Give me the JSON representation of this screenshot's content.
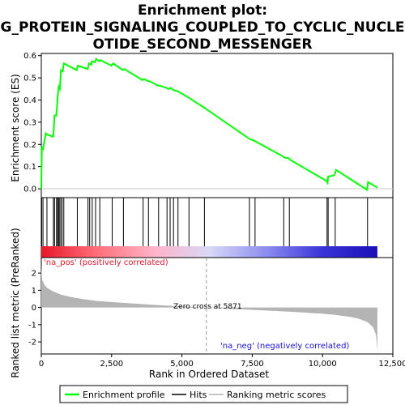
{
  "chart_data": {
    "type": "line",
    "title": "Enrichment plot: G_PROTEIN_SIGNALING_COUPLED_TO_CYCLIC_NUCLEOTIDE_SECOND_MESSENGER",
    "title_lines": [
      "Enrichment plot:",
      "G_PROTEIN_SIGNALING_COUPLED_TO_CYCLIC_NUCLE",
      "OTIDE_SECOND_MESSENGER"
    ],
    "xlabel": "Rank in Ordered Dataset",
    "xlim": [
      0,
      12500
    ],
    "x_ticks": [
      0,
      2500,
      5000,
      7500,
      10000,
      12500
    ],
    "x_tick_labels": [
      "0",
      "2,500",
      "5,000",
      "7,500",
      "10,000",
      "12,500"
    ],
    "es_panel": {
      "ylabel": "Enrichment score (ES)",
      "ylim": [
        -0.04,
        0.61
      ],
      "y_ticks": [
        0.0,
        0.1,
        0.2,
        0.3,
        0.4,
        0.5,
        0.6
      ],
      "y_tick_labels": [
        "0.0",
        "0.1",
        "0.2",
        "0.3",
        "0.4",
        "0.5",
        "0.6"
      ],
      "series": [
        {
          "name": "Enrichment profile",
          "color": "#00ff00",
          "x": [
            0,
            20,
            60,
            160,
            200,
            420,
            450,
            470,
            530,
            560,
            580,
            620,
            660,
            700,
            760,
            800,
            1260,
            1300,
            1650,
            1700,
            1780,
            1800,
            1900,
            1950,
            2050,
            2100,
            2500,
            2550,
            2900,
            2950,
            3600,
            3650,
            3800,
            3850,
            4150,
            4200,
            4450,
            4500,
            4550,
            4600,
            4700,
            4850,
            5250,
            5800,
            7400,
            7600,
            8600,
            8650,
            8800,
            8850,
            10150,
            10180,
            10200,
            10400,
            10450,
            10480,
            11580,
            11620,
            11950
          ],
          "y": [
            0.0,
            0.19,
            0.18,
            0.25,
            0.245,
            0.235,
            0.28,
            0.33,
            0.33,
            0.37,
            0.41,
            0.46,
            0.45,
            0.535,
            0.53,
            0.565,
            0.535,
            0.555,
            0.54,
            0.565,
            0.56,
            0.575,
            0.57,
            0.585,
            0.575,
            0.58,
            0.555,
            0.565,
            0.535,
            0.54,
            0.49,
            0.495,
            0.485,
            0.485,
            0.465,
            0.465,
            0.455,
            0.45,
            0.45,
            0.455,
            0.445,
            0.44,
            0.41,
            0.365,
            0.225,
            0.215,
            0.145,
            0.14,
            0.138,
            0.13,
            0.035,
            0.028,
            0.055,
            0.06,
            0.07,
            0.085,
            -0.005,
            0.03,
            0.005
          ]
        }
      ]
    },
    "hits_panel": {
      "hit_positions": [
        15,
        60,
        200,
        430,
        470,
        540,
        580,
        610,
        640,
        690,
        740,
        800,
        1280,
        1660,
        1720,
        1810,
        1930,
        2080,
        2520,
        2920,
        3620,
        3810,
        4170,
        4470,
        4580,
        4700,
        4860,
        5250,
        5800,
        7400,
        7600,
        8620,
        8820,
        10160,
        10200,
        10450,
        11600
      ],
      "gradient_colors": [
        "#e8172a",
        "#ff6f7a",
        "#ffb3c8",
        "#d8d8f7",
        "#8e8ef0",
        "#3a34d8",
        "#1a10b8"
      ]
    },
    "metric_panel": {
      "ylabel": "Ranked list metric (PreRanked)",
      "ylim": [
        -2.7,
        2.9
      ],
      "y_ticks": [
        -2,
        -1,
        0,
        1,
        2
      ],
      "y_tick_labels": [
        "-2",
        "-1",
        "0",
        "1",
        "2"
      ],
      "series": [
        {
          "name": "Ranking metric scores",
          "color": "#b4b4b4",
          "x": [
            0,
            30,
            100,
            200,
            400,
            700,
            1000,
            1500,
            2000,
            3000,
            4000,
            5000,
            5871,
            7000,
            8000,
            9000,
            10000,
            10500,
            11000,
            11300,
            11600,
            11800,
            11900,
            11950
          ],
          "y": [
            2.4,
            1.6,
            1.35,
            1.15,
            0.95,
            0.75,
            0.62,
            0.48,
            0.38,
            0.26,
            0.15,
            0.06,
            0.0,
            -0.1,
            -0.18,
            -0.26,
            -0.36,
            -0.44,
            -0.55,
            -0.66,
            -0.85,
            -1.15,
            -1.6,
            -2.5
          ]
        }
      ],
      "zero_cross_label": "Zero cross at 5871",
      "zero_cross": 5871,
      "pos_label": "'na_pos' (positively correlated)",
      "neg_label": "'na_neg' (negatively correlated)",
      "pos_color": "#e8172a",
      "neg_color": "#1a10d8"
    },
    "legend": {
      "placement": "bottom",
      "items": [
        {
          "label": "Enrichment profile",
          "color": "#00ff00"
        },
        {
          "label": "Hits",
          "color": "#000000"
        },
        {
          "label": "Ranking metric scores",
          "color": "#b4b4b4"
        }
      ]
    }
  }
}
